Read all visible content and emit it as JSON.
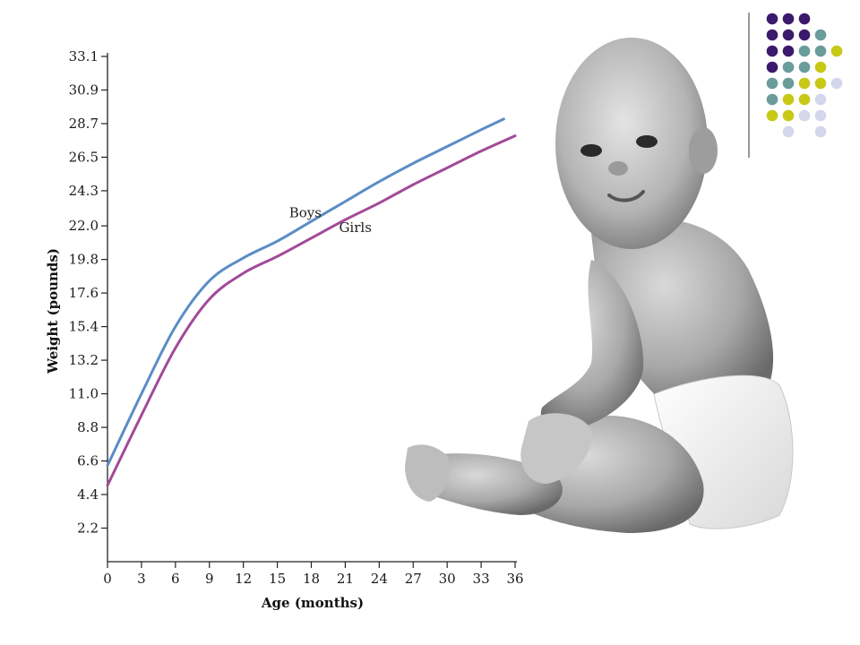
{
  "chart_data": {
    "type": "line",
    "xlabel": "Age (months)",
    "ylabel": "Weight (pounds)",
    "xlim": [
      0,
      36
    ],
    "ylim": [
      0,
      33.1
    ],
    "x_ticks": [
      0,
      3,
      6,
      9,
      12,
      15,
      18,
      21,
      24,
      27,
      30,
      33,
      36
    ],
    "y_ticks": [
      "2.2",
      "4.4",
      "6.6",
      "8.8",
      "11.0",
      "13.2",
      "15.4",
      "17.6",
      "19.8",
      "22.0",
      "24.3",
      "26.5",
      "28.7",
      "30.9",
      "33.1"
    ],
    "grid": false,
    "legend": "inline labels",
    "series": [
      {
        "name": "Boys",
        "color": "#5b8dc6",
        "x": [
          0,
          3,
          6,
          9,
          12,
          15,
          18,
          21,
          24,
          27,
          30,
          33,
          35
        ],
        "y": [
          6.3,
          11.0,
          15.4,
          18.4,
          19.9,
          21.0,
          22.3,
          23.6,
          24.9,
          26.1,
          27.2,
          28.3,
          29.0
        ]
      },
      {
        "name": "Girls",
        "color": "#a24a97",
        "x": [
          0,
          3,
          6,
          9,
          12,
          15,
          18,
          21,
          24,
          27,
          30,
          33,
          36
        ],
        "y": [
          5.0,
          9.6,
          14.0,
          17.2,
          18.9,
          20.0,
          21.2,
          22.4,
          23.5,
          24.7,
          25.8,
          26.9,
          27.9
        ]
      }
    ]
  },
  "decor": {
    "photo": "baby-photo",
    "dot_colors": [
      "#3b1a6b",
      "#6a9c9a",
      "#c8c817",
      "#d5d5ec"
    ]
  }
}
